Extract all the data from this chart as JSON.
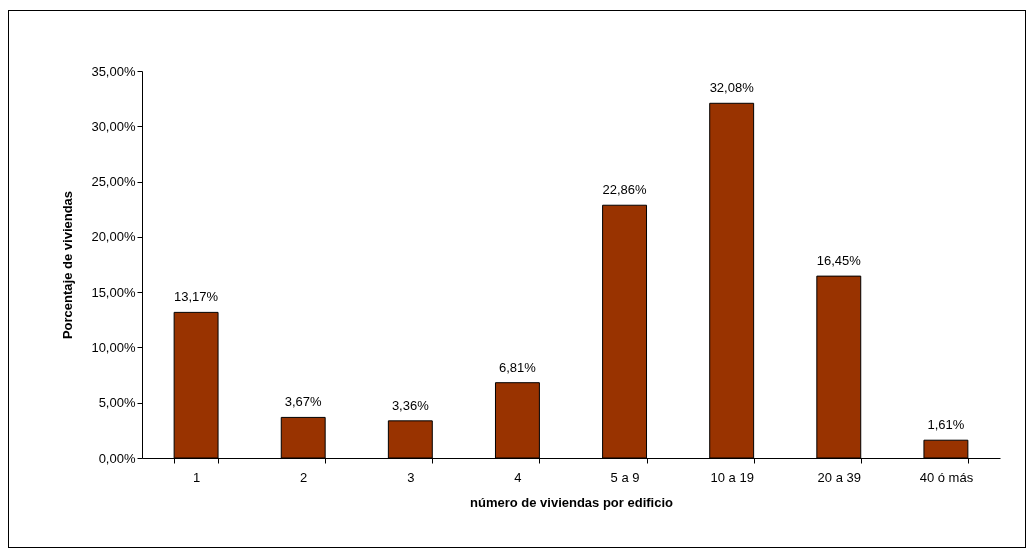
{
  "chart_data": {
    "type": "bar",
    "xlabel": "número de viviendas por edificio",
    "ylabel": "Porcentaje de viviendas",
    "categories": [
      "1",
      "2",
      "3",
      "4",
      "5 a 9",
      "10 a 19",
      "20 a 39",
      "40 ó más"
    ],
    "values": [
      13.17,
      3.67,
      3.36,
      6.81,
      22.86,
      32.08,
      16.45,
      1.61
    ],
    "value_labels": [
      "13,17%",
      "3,67%",
      "3,36%",
      "6,81%",
      "22,86%",
      "32,08%",
      "16,45%",
      "1,61%"
    ],
    "color": "#993300",
    "ylim": [
      0,
      35
    ],
    "yticks": [
      {
        "value": 0,
        "label": "0,00%"
      },
      {
        "value": 5,
        "label": "5,00%"
      },
      {
        "value": 10,
        "label": "10,00%"
      },
      {
        "value": 15,
        "label": "15,00%"
      },
      {
        "value": 20,
        "label": "20,00%"
      },
      {
        "value": 25,
        "label": "25,00%"
      },
      {
        "value": 30,
        "label": "30,00%"
      },
      {
        "value": 35,
        "label": "35,00%"
      }
    ],
    "grid": false
  }
}
